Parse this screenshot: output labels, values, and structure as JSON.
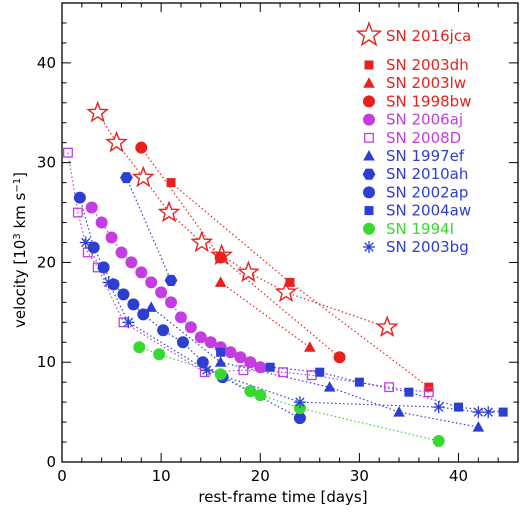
{
  "chart_data": {
    "type": "scatter",
    "xlabel": "rest-frame time [days]",
    "ylabel_main": "velocity [10",
    "ylabel_exp": "3",
    "ylabel_tail": " km s",
    "ylabel_exp2": "−1",
    "ylabel_end": "]",
    "xlim": [
      0,
      46
    ],
    "ylim": [
      0,
      46
    ],
    "xticks": [
      0,
      10,
      20,
      30,
      40
    ],
    "yticks": [
      0,
      10,
      20,
      30,
      40
    ],
    "legend_position": "top-right",
    "series": [
      {
        "name": "SN 2016jca",
        "color": "#e8211d",
        "marker": "star-open",
        "x": [
          3.6,
          5.5,
          8.2,
          10.8,
          14.1,
          16.1,
          18.8,
          22.6,
          32.8
        ],
        "y": [
          35,
          32,
          28.5,
          25,
          22,
          20.7,
          19,
          17,
          13.5
        ]
      },
      {
        "name": "SN 2003dh",
        "color": "#e8211d",
        "marker": "square",
        "x": [
          11,
          23,
          37
        ],
        "y": [
          28,
          18,
          7.5
        ]
      },
      {
        "name": "SN 2003lw",
        "color": "#e8211d",
        "marker": "triangle",
        "x": [
          16,
          25
        ],
        "y": [
          18,
          11.5
        ]
      },
      {
        "name": "SN 1998bw",
        "color": "#e8211d",
        "marker": "circle",
        "x": [
          8,
          16,
          28
        ],
        "y": [
          31.5,
          20.5,
          10.5
        ]
      },
      {
        "name": "SN 2006aj",
        "color": "#c33de0",
        "marker": "circle",
        "x": [
          3,
          4,
          5,
          6,
          7,
          8,
          9,
          10,
          11,
          12,
          13,
          14,
          15,
          16,
          17,
          18,
          19,
          20
        ],
        "y": [
          25.5,
          24,
          22.5,
          21,
          20,
          19,
          18,
          17,
          16,
          14.5,
          13.5,
          12.5,
          12,
          11.5,
          11,
          10.5,
          10,
          9.5
        ]
      },
      {
        "name": "SN 2008D",
        "color": "#c33de0",
        "marker": "square-open",
        "x": [
          0.6,
          1.6,
          2.6,
          3.6,
          6.2,
          14.4,
          18.3,
          22.3,
          25.2,
          33,
          37
        ],
        "y": [
          31,
          25,
          21,
          19.5,
          14,
          9,
          9.2,
          9,
          8.7,
          7.5,
          7
        ]
      },
      {
        "name": "SN 1997ef",
        "color": "#2d3fd1",
        "marker": "triangle",
        "x": [
          9,
          16,
          27,
          34,
          42
        ],
        "y": [
          15.5,
          10,
          7.5,
          5,
          3.5
        ]
      },
      {
        "name": "SN 2010ah",
        "color": "#2d3fd1",
        "marker": "hexagon",
        "x": [
          6.5,
          11
        ],
        "y": [
          28.5,
          18.2
        ]
      },
      {
        "name": "SN 2002ap",
        "color": "#2d3fd1",
        "marker": "circle",
        "x": [
          1.8,
          3.2,
          4.2,
          5.2,
          6.2,
          7.2,
          8.2,
          10.2,
          12.2,
          14.2,
          16.2,
          24
        ],
        "y": [
          26.5,
          21.5,
          19.5,
          17.8,
          16.8,
          15.8,
          14.8,
          13.2,
          12,
          10,
          8.5,
          4.4
        ]
      },
      {
        "name": "SN 2004aw",
        "color": "#2d3fd1",
        "marker": "square",
        "x": [
          16,
          21,
          26,
          30,
          35,
          40,
          44.5
        ],
        "y": [
          11,
          9.5,
          9,
          8,
          7,
          5.5,
          5
        ]
      },
      {
        "name": "SN 1994I",
        "color": "#38d830",
        "marker": "circle",
        "x": [
          7.8,
          9.8,
          16,
          19,
          20,
          24,
          38
        ],
        "y": [
          11.5,
          10.8,
          8.8,
          7.1,
          6.7,
          5.4,
          2.1
        ]
      },
      {
        "name": "SN 2003bg",
        "color": "#2d3fd1",
        "marker": "asterisk",
        "x": [
          2.4,
          4.7,
          6.7,
          14.6,
          24,
          38,
          42,
          43
        ],
        "y": [
          22,
          18,
          14,
          9.2,
          6,
          5.5,
          5,
          5
        ]
      }
    ]
  }
}
